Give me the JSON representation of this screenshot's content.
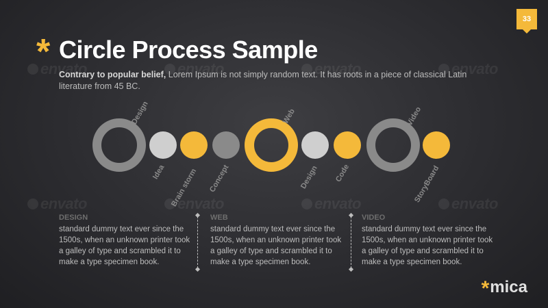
{
  "page_number": "33",
  "title": "Circle Process Sample",
  "subtitle_bold": "Contrary to popular belief,",
  "subtitle_rest": " Lorem Ipsum is not simply random text. It has roots in a piece of classical Latin literature from 45 BC.",
  "watermark_text": "envato",
  "labels_above": [
    "Design",
    "Web",
    "Video"
  ],
  "labels_below": [
    "Idea",
    "Brain storm",
    "Concept",
    "Design",
    "Code",
    "StoryBoard"
  ],
  "columns": [
    {
      "heading": "DESIGN",
      "text": "standard dummy text ever since the 1500s, when an unknown printer took a galley of type and scrambled it to make a type specimen book."
    },
    {
      "heading": "WEB",
      "text": "standard dummy text ever since the 1500s, when an unknown printer took a galley of type and scrambled it to make a type specimen book."
    },
    {
      "heading": "VIDEO",
      "text": "standard dummy text ever since the 1500s, when an unknown printer took a galley of type and scrambled it to make a type specimen book."
    }
  ],
  "brand_name": "mica",
  "colors": {
    "accent": "#f4b93a",
    "gray": "#8a8a8a",
    "light_gray": "#cfcfcf",
    "background": "#2c2c30"
  }
}
